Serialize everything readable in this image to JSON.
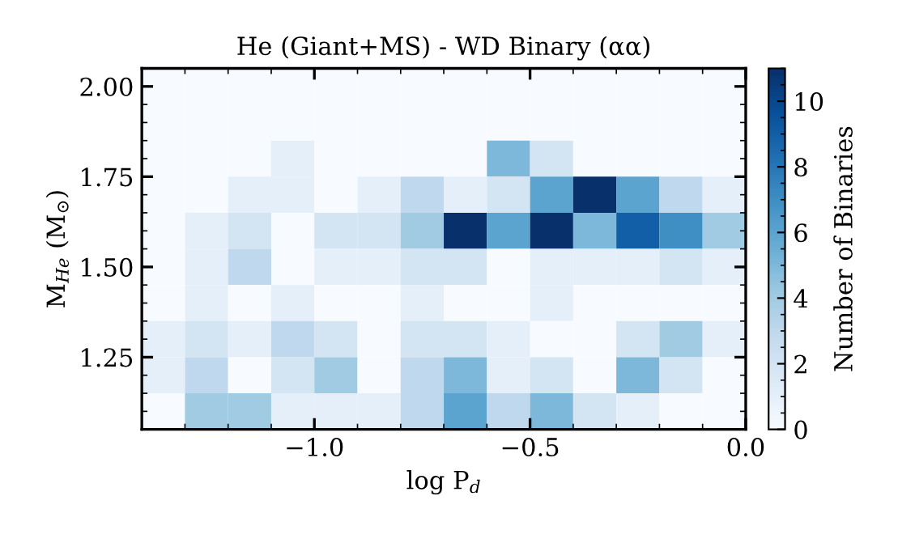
{
  "chart_data": {
    "type": "heatmap",
    "title": "He (Giant+MS) - WD Binary (αα)",
    "xlabel": "log P$_{d}$",
    "ylabel": "M$_{He}$ (M$_{⊙}$)",
    "clabel": "Number of Binaries",
    "x": [
      -1.35,
      -1.25,
      -1.15,
      -1.05,
      -0.95,
      -0.85,
      -0.75,
      -0.65,
      -0.55,
      -0.45,
      -0.35,
      -0.25,
      -0.15,
      -0.05
    ],
    "y": [
      2.0,
      1.9,
      1.8,
      1.7,
      1.6,
      1.5,
      1.4,
      1.3,
      1.2,
      1.1
    ],
    "xlim": [
      -1.4,
      0.0
    ],
    "ylim": [
      1.05,
      2.05
    ],
    "xticks": [
      {
        "value": -1.0,
        "label": "−1.0"
      },
      {
        "value": -0.5,
        "label": "−0.5"
      },
      {
        "value": 0.0,
        "label": "0.0"
      }
    ],
    "yticks": [
      {
        "value": 1.25,
        "label": "1.25"
      },
      {
        "value": 1.5,
        "label": "1.50"
      },
      {
        "value": 1.75,
        "label": "1.75"
      },
      {
        "value": 2.0,
        "label": "2.00"
      }
    ],
    "clim": [
      0,
      11
    ],
    "cticks": [
      0,
      2,
      4,
      6,
      8,
      10
    ],
    "cells": [
      [
        0,
        0,
        0,
        0,
        0,
        0,
        0,
        0,
        0,
        0,
        0,
        0,
        0,
        0
      ],
      [
        0,
        0,
        0,
        0,
        0,
        0,
        0,
        0,
        0,
        0,
        0,
        0,
        0,
        0
      ],
      [
        0,
        0,
        0,
        1,
        0,
        0,
        0,
        0,
        5,
        2,
        0,
        0,
        0,
        0
      ],
      [
        0,
        0,
        1,
        1,
        0,
        1,
        3,
        1,
        2,
        6,
        11,
        6,
        3,
        1
      ],
      [
        0,
        1,
        2,
        0,
        2,
        2,
        4,
        11,
        6,
        11,
        5,
        9,
        7,
        4
      ],
      [
        0,
        1,
        3,
        0,
        1,
        1,
        2,
        2,
        0,
        1,
        1,
        1,
        2,
        1
      ],
      [
        0,
        1,
        0,
        1,
        0,
        0,
        1,
        0,
        0,
        1,
        0,
        0,
        0,
        0
      ],
      [
        1,
        2,
        1,
        3,
        2,
        0,
        2,
        2,
        1,
        0,
        0,
        2,
        4,
        1
      ],
      [
        1,
        3,
        0,
        2,
        4,
        0,
        3,
        5,
        1,
        2,
        0,
        5,
        2,
        0
      ],
      [
        0,
        4,
        4,
        1,
        1,
        1,
        3,
        6,
        3,
        5,
        2,
        1,
        0,
        0
      ]
    ]
  }
}
